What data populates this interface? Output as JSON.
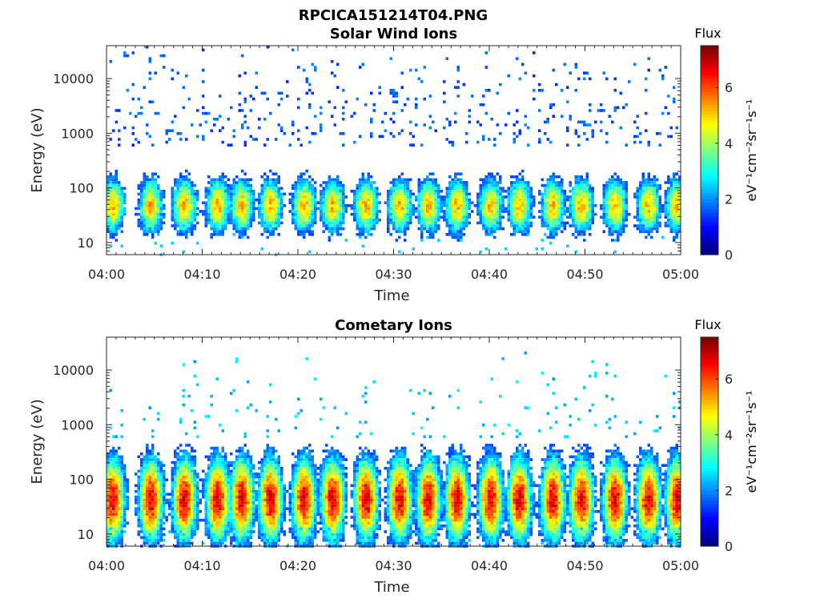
{
  "figure": {
    "filename_title": "RPCICA151214T04.PNG"
  },
  "chart_data": [
    {
      "type": "heatmap",
      "title": "Solar Wind Ions",
      "xlabel": "Time",
      "ylabel": "Energy (eV)",
      "x_ticks": [
        "04:00",
        "04:10",
        "04:20",
        "04:30",
        "04:40",
        "04:50",
        "05:00"
      ],
      "xlim": [
        "04:00",
        "05:00"
      ],
      "y_scale": "log",
      "y_ticks": [
        10,
        100,
        1000,
        10000
      ],
      "y_tick_labels": [
        "10",
        "100",
        "1000",
        "10000"
      ],
      "ylim": [
        6,
        40000
      ],
      "colorbar": {
        "label": "Flux",
        "unit_label": "eV⁻¹cm⁻²sr⁻¹s⁻¹",
        "range": [
          0,
          7.5
        ],
        "ticks": [
          0,
          2,
          4,
          6
        ],
        "colormap": "jet"
      },
      "burst_times": [
        "04:00.5",
        "04:04.5",
        "04:08",
        "04:11.5",
        "04:14",
        "04:17",
        "04:20.5",
        "04:23.5",
        "04:27",
        "04:30.5",
        "04:33.5",
        "04:36.5",
        "04:40",
        "04:43",
        "04:46.5",
        "04:49.5",
        "04:53",
        "04:56.5",
        "04:59.5"
      ],
      "peak_energy_eV": 50,
      "peak_flux": 5.2,
      "background_flux": 1.2
    },
    {
      "type": "heatmap",
      "title": "Cometary Ions",
      "xlabel": "Time",
      "ylabel": "Energy (eV)",
      "x_ticks": [
        "04:00",
        "04:10",
        "04:20",
        "04:30",
        "04:40",
        "04:50",
        "05:00"
      ],
      "xlim": [
        "04:00",
        "05:00"
      ],
      "y_scale": "log",
      "y_ticks": [
        10,
        100,
        1000,
        10000
      ],
      "y_tick_labels": [
        "10",
        "100",
        "1000",
        "10000"
      ],
      "ylim": [
        6,
        40000
      ],
      "colorbar": {
        "label": "Flux",
        "unit_label": "eV⁻¹cm⁻²sr⁻¹s⁻¹",
        "range": [
          0,
          7.5
        ],
        "ticks": [
          0,
          2,
          4,
          6
        ],
        "colormap": "jet"
      },
      "burst_times": [
        "04:00.5",
        "04:04.5",
        "04:08",
        "04:11.5",
        "04:14",
        "04:17",
        "04:20.5",
        "04:23.5",
        "04:27",
        "04:30.5",
        "04:33.5",
        "04:36.5",
        "04:40",
        "04:43",
        "04:46.5",
        "04:49.5",
        "04:53",
        "04:56.5",
        "04:59.5"
      ],
      "peak_energy_eV": 45,
      "peak_flux": 6.8,
      "background_flux": 2.0
    }
  ]
}
